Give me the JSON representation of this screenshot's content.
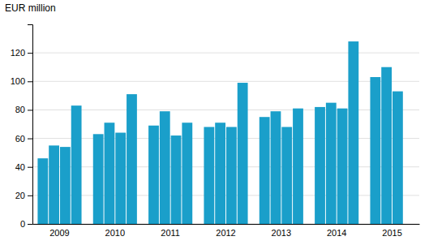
{
  "chart_data": {
    "type": "bar",
    "ylabel": "EUR million",
    "categories": [
      "2009",
      "2010",
      "2011",
      "2012",
      "2013",
      "2014",
      "2015"
    ],
    "series": [
      {
        "values": [
          46,
          63,
          69,
          68,
          75,
          82,
          103
        ]
      },
      {
        "values": [
          55,
          71,
          79,
          71,
          79,
          85,
          110
        ]
      },
      {
        "values": [
          54,
          64,
          62,
          68,
          68,
          81,
          93
        ]
      },
      {
        "values": [
          83,
          91,
          71,
          99,
          81,
          128,
          null
        ]
      }
    ],
    "color": "#1a9fca",
    "ylim": [
      0,
      140
    ],
    "yticks": [
      0,
      20,
      40,
      60,
      80,
      100,
      120
    ],
    "grid": true
  }
}
